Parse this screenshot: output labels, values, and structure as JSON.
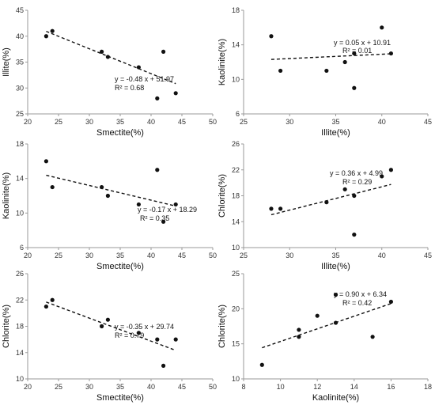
{
  "chart_data": [
    {
      "type": "scatter",
      "xlabel": "Smectite(%)",
      "ylabel": "Illite(%)",
      "xlim": [
        20,
        50
      ],
      "ylim": [
        25,
        45
      ],
      "xticks": [
        20,
        25,
        30,
        35,
        40,
        45,
        50
      ],
      "yticks": [
        25,
        30,
        35,
        40,
        45
      ],
      "points": [
        {
          "x": 23,
          "y": 40
        },
        {
          "x": 24,
          "y": 41
        },
        {
          "x": 32,
          "y": 37
        },
        {
          "x": 33,
          "y": 36
        },
        {
          "x": 38,
          "y": 34
        },
        {
          "x": 41,
          "y": 28
        },
        {
          "x": 42,
          "y": 37
        },
        {
          "x": 44,
          "y": 29
        }
      ],
      "trendline": {
        "slope": -0.48,
        "intercept": 51.97,
        "x_range": [
          23,
          44
        ],
        "style": "dashed"
      },
      "equation": "y = -0.48 x + 51.97",
      "r2": "R² = 0.68",
      "grid": false
    },
    {
      "type": "scatter",
      "xlabel": "Illite(%)",
      "ylabel": "Kaolinite(%)",
      "xlim": [
        25,
        45
      ],
      "ylim": [
        6,
        18
      ],
      "xticks": [
        25,
        30,
        35,
        40,
        45
      ],
      "yticks": [
        6,
        10,
        14,
        18
      ],
      "points": [
        {
          "x": 28,
          "y": 15
        },
        {
          "x": 29,
          "y": 11
        },
        {
          "x": 34,
          "y": 11
        },
        {
          "x": 36,
          "y": 12
        },
        {
          "x": 37,
          "y": 13
        },
        {
          "x": 37,
          "y": 9
        },
        {
          "x": 40,
          "y": 16
        },
        {
          "x": 41,
          "y": 13
        }
      ],
      "trendline": {
        "slope": 0.05,
        "intercept": 10.91,
        "x_range": [
          28,
          41
        ],
        "style": "dashed"
      },
      "equation": "y = 0.05 x + 10.91",
      "r2": "R² = 0.01",
      "grid": false
    },
    {
      "type": "scatter",
      "xlabel": "Smectite(%)",
      "ylabel": "Kaolinite(%)",
      "xlim": [
        20,
        50
      ],
      "ylim": [
        6,
        18
      ],
      "xticks": [
        20,
        25,
        30,
        35,
        40,
        45,
        50
      ],
      "yticks": [
        6,
        10,
        14,
        18
      ],
      "points": [
        {
          "x": 23,
          "y": 16
        },
        {
          "x": 24,
          "y": 13
        },
        {
          "x": 32,
          "y": 13
        },
        {
          "x": 33,
          "y": 12
        },
        {
          "x": 38,
          "y": 11
        },
        {
          "x": 41,
          "y": 15
        },
        {
          "x": 42,
          "y": 9
        },
        {
          "x": 44,
          "y": 11
        }
      ],
      "trendline": {
        "slope": -0.17,
        "intercept": 18.29,
        "x_range": [
          23,
          44
        ],
        "style": "dashed"
      },
      "equation": "y = -0.17 x + 18.29",
      "r2": "R² = 0.35",
      "grid": false
    },
    {
      "type": "scatter",
      "xlabel": "Illite(%)",
      "ylabel": "Chlorite(%)",
      "xlim": [
        25,
        45
      ],
      "ylim": [
        10,
        26
      ],
      "xticks": [
        25,
        30,
        35,
        40,
        45
      ],
      "yticks": [
        10,
        14,
        18,
        22,
        26
      ],
      "points": [
        {
          "x": 28,
          "y": 16
        },
        {
          "x": 29,
          "y": 16
        },
        {
          "x": 34,
          "y": 17
        },
        {
          "x": 36,
          "y": 19
        },
        {
          "x": 37,
          "y": 18
        },
        {
          "x": 37,
          "y": 12
        },
        {
          "x": 40,
          "y": 21
        },
        {
          "x": 41,
          "y": 22
        }
      ],
      "trendline": {
        "slope": 0.36,
        "intercept": 4.99,
        "x_range": [
          28,
          41
        ],
        "style": "dashed"
      },
      "equation": "y = 0.36 x + 4.99",
      "r2": "R² = 0.29",
      "grid": false
    },
    {
      "type": "scatter",
      "xlabel": "Smectite(%)",
      "ylabel": "Chlorite(%)",
      "xlim": [
        20,
        50
      ],
      "ylim": [
        10,
        26
      ],
      "xticks": [
        20,
        25,
        30,
        35,
        40,
        45,
        50
      ],
      "yticks": [
        10,
        14,
        18,
        22,
        26
      ],
      "points": [
        {
          "x": 23,
          "y": 21
        },
        {
          "x": 24,
          "y": 22
        },
        {
          "x": 32,
          "y": 18
        },
        {
          "x": 33,
          "y": 19
        },
        {
          "x": 38,
          "y": 17
        },
        {
          "x": 41,
          "y": 16
        },
        {
          "x": 42,
          "y": 12
        },
        {
          "x": 44,
          "y": 16
        }
      ],
      "trendline": {
        "slope": -0.35,
        "intercept": 29.74,
        "x_range": [
          23,
          44
        ],
        "style": "dashed"
      },
      "equation": "y = -0.35 x + 29.74",
      "r2": "R² = 0.79",
      "grid": false
    },
    {
      "type": "scatter",
      "xlabel": "Kaolinite(%)",
      "ylabel": "Chlorite(%)",
      "xlim": [
        8,
        18
      ],
      "ylim": [
        10,
        25
      ],
      "xticks": [
        8,
        10,
        12,
        14,
        16,
        18
      ],
      "yticks": [
        10,
        15,
        20,
        25
      ],
      "points": [
        {
          "x": 9,
          "y": 12
        },
        {
          "x": 11,
          "y": 17
        },
        {
          "x": 11,
          "y": 16
        },
        {
          "x": 12,
          "y": 19
        },
        {
          "x": 13,
          "y": 22
        },
        {
          "x": 13,
          "y": 18
        },
        {
          "x": 15,
          "y": 16
        },
        {
          "x": 16,
          "y": 21
        }
      ],
      "trendline": {
        "slope": 0.9,
        "intercept": 6.34,
        "x_range": [
          9,
          16
        ],
        "style": "dashed"
      },
      "equation": "y = 0.90 x + 6.34",
      "r2": "R² = 0.42",
      "grid": false
    }
  ]
}
